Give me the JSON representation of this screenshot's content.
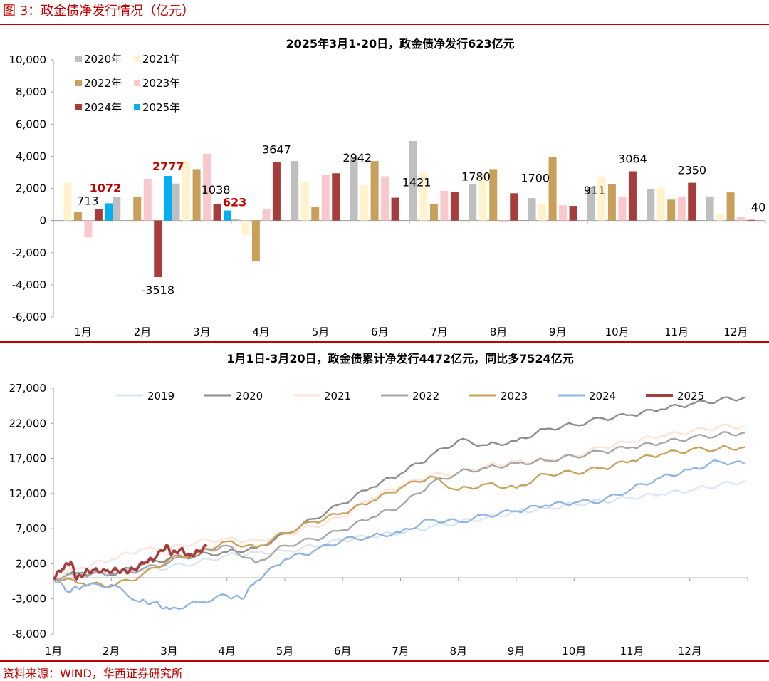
{
  "figure_title": "图 3：政金债净发行情况（亿元）",
  "source": "资料来源：WIND，华西证券研究所",
  "chart_data": [
    {
      "type": "bar",
      "title": "2025年3月1-20日，政金债净发行623亿元",
      "categories": [
        "1月",
        "2月",
        "3月",
        "4月",
        "5月",
        "6月",
        "7月",
        "8月",
        "9月",
        "10月",
        "11月",
        "12月"
      ],
      "ylim": [
        -6000,
        10000
      ],
      "yticks": [
        "10,000",
        "8,000",
        "6,000",
        "4,000",
        "2,000",
        "0",
        "-2,000",
        "-4,000",
        "-6,000"
      ],
      "ytick_values": [
        10000,
        8000,
        6000,
        4000,
        2000,
        0,
        -2000,
        -4000,
        -6000
      ],
      "legend_placement": "top-left",
      "series": [
        {
          "name": "2020年",
          "color": "#bfbfbf",
          "values": [
            0,
            1450,
            2300,
            100,
            3700,
            3900,
            4950,
            2250,
            1400,
            2100,
            1950,
            1500
          ]
        },
        {
          "name": "2021年",
          "color": "#fff2cc",
          "values": [
            2350,
            0,
            3700,
            -900,
            2400,
            2200,
            2950,
            2850,
            1000,
            2700,
            2050,
            400
          ]
        },
        {
          "name": "2022年",
          "color": "#c9a05a",
          "values": [
            550,
            1450,
            3200,
            -2550,
            850,
            3700,
            1050,
            3200,
            3950,
            2250,
            1300,
            1750
          ]
        },
        {
          "name": "2023年",
          "color": "#f8c8cc",
          "values": [
            -1050,
            2600,
            4150,
            700,
            2850,
            2750,
            1850,
            -100,
            950,
            1500,
            1500,
            200
          ]
        },
        {
          "name": "2024年",
          "color": "#a63c3c",
          "values": [
            713,
            -3518,
            1038,
            3647,
            2942,
            1421,
            1780,
            1700,
            911,
            3064,
            2350,
            40
          ]
        },
        {
          "name": "2025年",
          "color": "#00b0f0",
          "values": [
            1072,
            2777,
            623,
            null,
            null,
            null,
            null,
            null,
            null,
            null,
            null,
            null
          ]
        }
      ],
      "data_labels": [
        {
          "text": "713",
          "month": 0,
          "series": "2024年",
          "red": false
        },
        {
          "text": "1072",
          "month": 0,
          "series": "2025年",
          "red": true
        },
        {
          "text": "-3518",
          "month": 1,
          "series": "2024年",
          "red": false
        },
        {
          "text": "2777",
          "month": 1,
          "series": "2025年",
          "red": true
        },
        {
          "text": "1038",
          "month": 2,
          "series": "2024年",
          "red": false
        },
        {
          "text": "623",
          "month": 2,
          "series": "2025年",
          "red": true
        },
        {
          "text": "3647",
          "month": 3,
          "series": "2024年",
          "red": false
        },
        {
          "text": "2942",
          "month": 4,
          "series": "2024年",
          "red": false
        },
        {
          "text": "1421",
          "month": 5,
          "series": "2024年",
          "red": false
        },
        {
          "text": "1780",
          "month": 6,
          "series": "2024年",
          "red": false
        },
        {
          "text": "1700",
          "month": 7,
          "series": "2024年",
          "red": false
        },
        {
          "text": "911",
          "month": 8,
          "series": "2024年",
          "red": false
        },
        {
          "text": "3064",
          "month": 9,
          "series": "2024年",
          "red": false
        },
        {
          "text": "2350",
          "month": 10,
          "series": "2024年",
          "red": false
        },
        {
          "text": "40",
          "month": 11,
          "series": "2024年",
          "red": false
        }
      ]
    },
    {
      "type": "line",
      "title": "1月1日-3月20日，政金债累计净发行4472亿元，同比多7524亿元",
      "xlabels": [
        "1月",
        "2月",
        "3月",
        "4月",
        "5月",
        "6月",
        "7月",
        "8月",
        "9月",
        "10月",
        "11月",
        "12月"
      ],
      "xlim": [
        1,
        13
      ],
      "ylim": [
        -8000,
        27000
      ],
      "yticks": [
        "27,000",
        "22,000",
        "17,000",
        "12,000",
        "7,000",
        "2,000",
        "-3,000",
        "-8,000"
      ],
      "ytick_values": [
        27000,
        22000,
        17000,
        12000,
        7000,
        2000,
        -3000,
        -8000
      ],
      "legend_placement": "top",
      "series": [
        {
          "name": "2019",
          "color": "#dbe5f1",
          "x": [
            1.0,
            1.5,
            2.0,
            2.5,
            3.0,
            3.5,
            4.0,
            4.5,
            5.0,
            5.5,
            6.0,
            6.5,
            7.0,
            7.5,
            8.0,
            8.5,
            9.0,
            9.5,
            10.0,
            10.5,
            11.0,
            11.5,
            12.0,
            12.5,
            12.95
          ],
          "y": [
            0,
            500,
            800,
            1000,
            1500,
            2200,
            3200,
            3600,
            3800,
            4500,
            5400,
            5900,
            6400,
            7200,
            7900,
            8600,
            9400,
            9900,
            10500,
            10900,
            11400,
            11900,
            12400,
            13200,
            13800
          ]
        },
        {
          "name": "2020",
          "color": "#8c8c8c",
          "x": [
            1.0,
            1.5,
            2.0,
            2.5,
            3.0,
            3.5,
            4.0,
            4.5,
            5.0,
            5.5,
            6.0,
            6.5,
            7.0,
            7.5,
            8.0,
            8.5,
            9.0,
            9.5,
            10.0,
            10.5,
            11.0,
            11.5,
            12.0,
            12.5,
            12.95
          ],
          "y": [
            0,
            700,
            400,
            1800,
            2800,
            3200,
            3700,
            4200,
            6200,
            8400,
            10600,
            12900,
            14800,
            17200,
            19600,
            18900,
            19500,
            21200,
            21800,
            22700,
            23200,
            24000,
            24700,
            25300,
            25700
          ]
        },
        {
          "name": "2021",
          "color": "#fce4d6",
          "x": [
            1.0,
            1.5,
            2.0,
            2.5,
            3.0,
            3.5,
            4.0,
            4.5,
            5.0,
            5.5,
            6.0,
            6.5,
            7.0,
            7.5,
            8.0,
            8.5,
            9.0,
            9.5,
            10.0,
            10.5,
            11.0,
            11.5,
            12.0,
            12.5,
            12.95
          ],
          "y": [
            0,
            1500,
            2600,
            4000,
            4100,
            5200,
            5600,
            5200,
            6200,
            7300,
            8700,
            11400,
            13000,
            14500,
            15000,
            16000,
            16600,
            16800,
            17400,
            18600,
            19400,
            20200,
            20800,
            21500,
            21600
          ]
        },
        {
          "name": "2022",
          "color": "#a6a6a6",
          "x": [
            1.0,
            1.5,
            2.0,
            2.5,
            3.0,
            3.5,
            4.0,
            4.5,
            5.0,
            5.5,
            6.0,
            6.5,
            7.0,
            7.5,
            8.0,
            8.5,
            9.0,
            9.5,
            10.0,
            10.5,
            11.0,
            11.5,
            12.0,
            12.5,
            12.95
          ],
          "y": [
            0,
            400,
            600,
            1100,
            2200,
            3700,
            4600,
            2100,
            4600,
            5500,
            6800,
            8600,
            10200,
            13300,
            15000,
            15700,
            16300,
            16700,
            17300,
            18000,
            18600,
            19200,
            19900,
            20400,
            20700
          ]
        },
        {
          "name": "2023",
          "color": "#c9a05a",
          "x": [
            1.0,
            1.5,
            2.0,
            2.5,
            3.0,
            3.5,
            4.0,
            4.5,
            5.0,
            5.5,
            6.0,
            6.5,
            7.0,
            7.5,
            8.0,
            8.5,
            9.0,
            9.5,
            10.0,
            10.5,
            11.0,
            11.5,
            12.0,
            12.5,
            12.95
          ],
          "y": [
            0,
            -800,
            -1200,
            200,
            2600,
            3600,
            5200,
            4300,
            6400,
            8000,
            9200,
            10900,
            12800,
            14400,
            12500,
            13400,
            12800,
            14800,
            15000,
            15600,
            16700,
            17600,
            18200,
            18400,
            18600
          ]
        },
        {
          "name": "2024",
          "color": "#8db4e2",
          "x": [
            1.0,
            1.25,
            1.5,
            2.0,
            2.5,
            2.75,
            3.0,
            3.5,
            4.0,
            4.25,
            4.5,
            5.0,
            5.5,
            6.0,
            6.5,
            7.0,
            7.5,
            8.0,
            8.5,
            9.0,
            9.5,
            10.0,
            10.5,
            11.0,
            11.5,
            12.0,
            12.5,
            12.95
          ],
          "y": [
            0,
            -2000,
            -1200,
            -1000,
            -3400,
            -3500,
            -4500,
            -3500,
            -2500,
            -3000,
            -500,
            2600,
            3800,
            5400,
            5900,
            6500,
            8300,
            8000,
            8900,
            9500,
            10300,
            10700,
            11000,
            12700,
            14300,
            15400,
            16600,
            16200
          ]
        },
        {
          "name": "2025",
          "color": "#a63c3c",
          "x": [
            1.0,
            1.15,
            1.3,
            1.4,
            1.55,
            1.7,
            1.9,
            2.1,
            2.25,
            2.4,
            2.6,
            2.75,
            2.95,
            3.05,
            3.2,
            3.35,
            3.5,
            3.65
          ],
          "y": [
            0,
            1200,
            2300,
            -200,
            800,
            1100,
            1000,
            1100,
            900,
            1200,
            2300,
            2700,
            4600,
            3400,
            4100,
            3100,
            3800,
            4472
          ]
        }
      ]
    }
  ]
}
